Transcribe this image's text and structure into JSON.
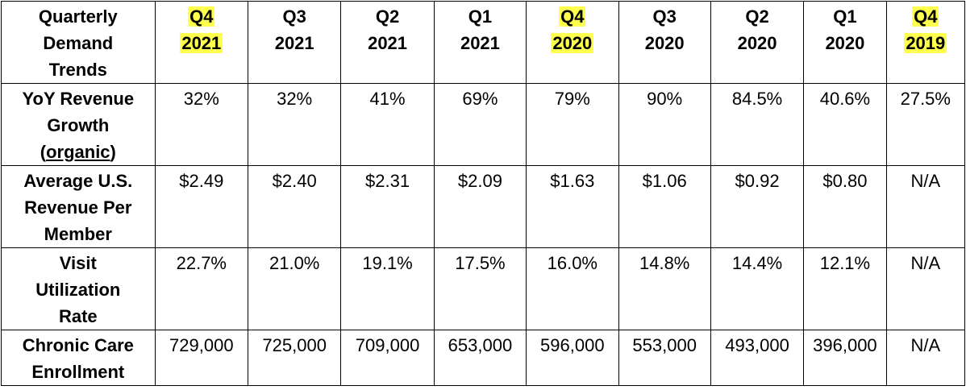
{
  "table": {
    "corner": [
      "Quarterly",
      "Demand",
      "Trends"
    ],
    "columns": [
      {
        "q": "Q4",
        "year": "2021",
        "highlight": true
      },
      {
        "q": "Q3",
        "year": "2021",
        "highlight": false
      },
      {
        "q": "Q2",
        "year": "2021",
        "highlight": false
      },
      {
        "q": "Q1",
        "year": "2021",
        "highlight": false
      },
      {
        "q": "Q4",
        "year": "2020",
        "highlight": true
      },
      {
        "q": "Q3",
        "year": "2020",
        "highlight": false
      },
      {
        "q": "Q2",
        "year": "2020",
        "highlight": false
      },
      {
        "q": "Q1",
        "year": "2020",
        "highlight": false
      },
      {
        "q": "Q4",
        "year": "2019",
        "highlight": true
      }
    ],
    "rows": [
      {
        "label": [
          "YoY Revenue",
          "Growth",
          "(organic)"
        ],
        "values": [
          "32%",
          "32%",
          "41%",
          "69%",
          "79%",
          "90%",
          "84.5%",
          "40.6%",
          "27.5%"
        ]
      },
      {
        "label": [
          "Average U.S.",
          "Revenue Per",
          "Member"
        ],
        "values": [
          "$2.49",
          "$2.40",
          "$2.31",
          "$2.09",
          "$1.63",
          "$1.06",
          "$0.92",
          "$0.80",
          "N/A"
        ]
      },
      {
        "label": [
          "Visit",
          "Utilization",
          "Rate"
        ],
        "values": [
          "22.7%",
          "21.0%",
          "19.1%",
          "17.5%",
          "16.0%",
          "14.8%",
          "14.4%",
          "12.1%",
          "N/A"
        ]
      },
      {
        "label": [
          "Chronic Care",
          "Enrollment"
        ],
        "values": [
          "729,000",
          "725,000",
          "709,000",
          "653,000",
          "596,000",
          "553,000",
          "493,000",
          "396,000",
          "N/A"
        ]
      }
    ],
    "highlight_color": "#ffff4d"
  }
}
